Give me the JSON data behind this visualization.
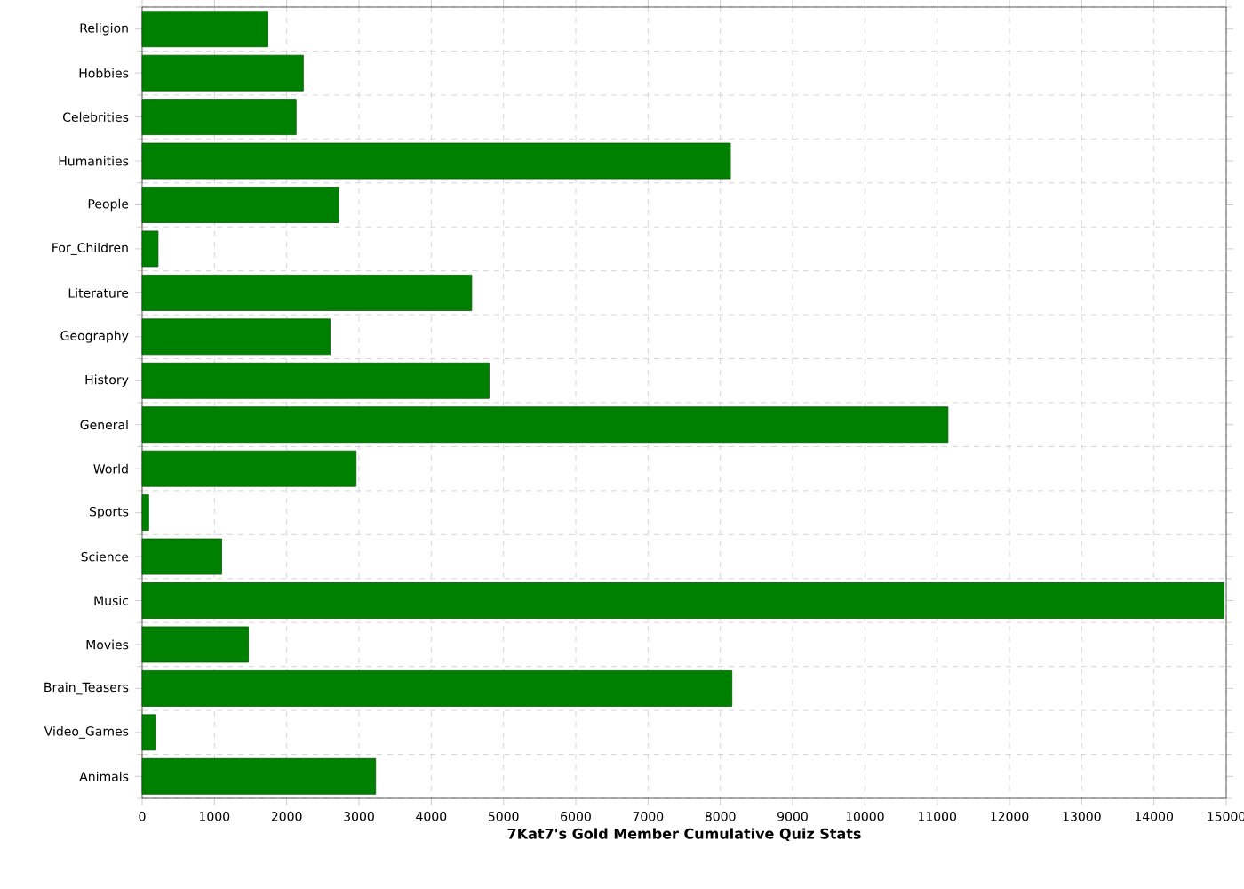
{
  "chart_data": {
    "type": "bar",
    "orientation": "horizontal",
    "xlabel": "7Kat7's Gold Member Cumulative Quiz Stats",
    "categories": [
      "Religion",
      "Hobbies",
      "Celebrities",
      "Humanities",
      "People",
      "For_Children",
      "Literature",
      "Geography",
      "History",
      "General",
      "World",
      "Sports",
      "Science",
      "Music",
      "Movies",
      "Brain_Teasers",
      "Video_Games",
      "Animals"
    ],
    "values": [
      1740,
      2230,
      2130,
      8140,
      2720,
      220,
      4560,
      2600,
      4800,
      11150,
      2960,
      90,
      1100,
      14970,
      1470,
      8160,
      190,
      3230
    ],
    "color": "#008000",
    "xlim": [
      0,
      15000
    ],
    "xticks": [
      0,
      1000,
      2000,
      3000,
      4000,
      5000,
      6000,
      7000,
      8000,
      9000,
      10000,
      11000,
      12000,
      13000,
      14000,
      15000
    ],
    "grid": true
  }
}
